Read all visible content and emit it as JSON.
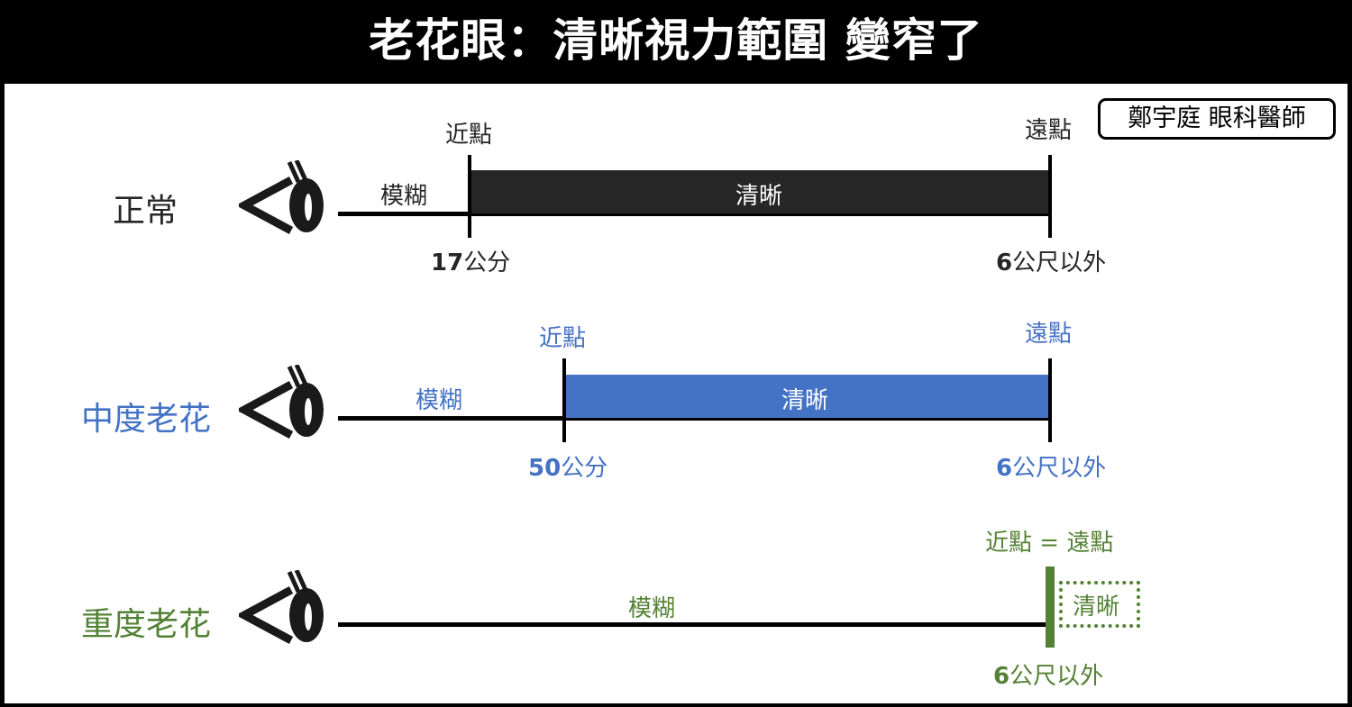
{
  "title": "老花眼：清晰視力範圍 變窄了",
  "credit": "鄭宇庭 眼科醫師",
  "colors": {
    "normal": "#262626",
    "moderate": "#4472c4",
    "severe": "#548235"
  },
  "rows": [
    {
      "name": "正常",
      "near_label": "近點",
      "far_label": "遠點",
      "blur_label": "模糊",
      "clear_label": "清晰",
      "near_value": "17",
      "near_unit": "公分",
      "far_value": "6",
      "far_unit": "公尺以外"
    },
    {
      "name": "中度老花",
      "near_label": "近點",
      "far_label": "遠點",
      "blur_label": "模糊",
      "clear_label": "清晰",
      "near_value": "50",
      "near_unit": "公分",
      "far_value": "6",
      "far_unit": "公尺以外"
    },
    {
      "name": "重度老花",
      "near_far_label": "近點 = 遠點",
      "blur_label": "模糊",
      "clear_label": "清晰",
      "far_value": "6",
      "far_unit": "公尺以外"
    }
  ]
}
